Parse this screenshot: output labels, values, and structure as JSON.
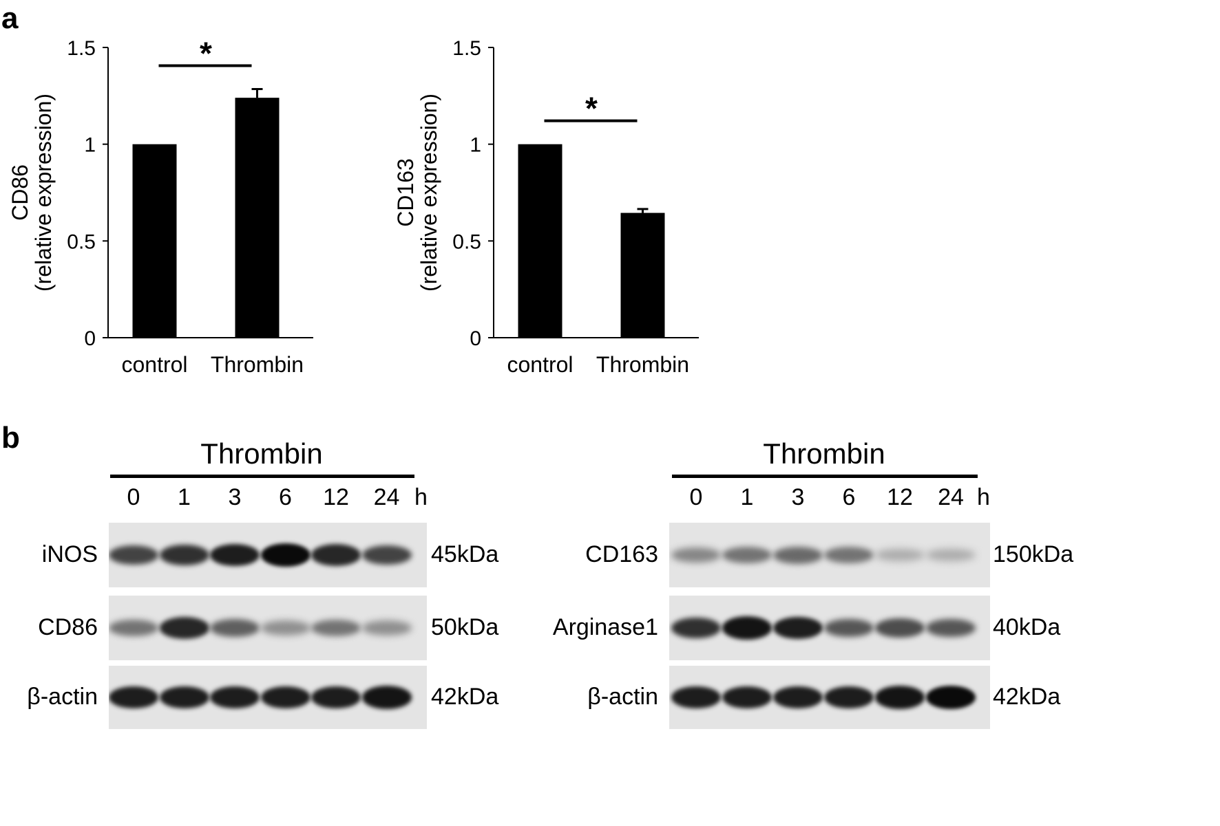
{
  "panels": {
    "a": "a",
    "b": "b"
  },
  "chart_data": [
    {
      "type": "bar",
      "categories": [
        "control",
        "Thrombin"
      ],
      "values": [
        1.0,
        1.24
      ],
      "errors": [
        0,
        0.045
      ],
      "ylabel_line1": "CD86",
      "ylabel_line2": "(relative expression)",
      "ylim": [
        0,
        1.5
      ],
      "yticks": [
        0,
        0.5,
        1,
        1.5
      ],
      "ytick_labels": [
        "0",
        "0.5",
        "1",
        "1.5"
      ],
      "significance": "*",
      "bar_color": "#000000"
    },
    {
      "type": "bar",
      "categories": [
        "control",
        "Thrombin"
      ],
      "values": [
        1.0,
        0.645
      ],
      "errors": [
        0,
        0.02
      ],
      "ylabel_line1": "CD163",
      "ylabel_line2": "(relative expression)",
      "ylim": [
        0,
        1.5
      ],
      "yticks": [
        0,
        0.5,
        1,
        1.5
      ],
      "ytick_labels": [
        "0",
        "0.5",
        "1",
        "1.5"
      ],
      "significance": "*",
      "bar_color": "#000000"
    }
  ],
  "blots": [
    {
      "title": "Thrombin",
      "lanes": [
        "0",
        "1",
        "3",
        "6",
        "12",
        "24"
      ],
      "unit": "h",
      "rows": [
        {
          "label": "iNOS",
          "kda": "45kDa",
          "intensity": [
            0.7,
            0.8,
            0.9,
            1.0,
            0.85,
            0.7
          ]
        },
        {
          "label": "CD86",
          "kda": "50kDa",
          "intensity": [
            0.45,
            0.85,
            0.55,
            0.3,
            0.45,
            0.3
          ]
        },
        {
          "label": "β-actin",
          "kda": "42kDa",
          "intensity": [
            0.9,
            0.9,
            0.9,
            0.9,
            0.9,
            0.95
          ]
        }
      ]
    },
    {
      "title": "Thrombin",
      "lanes": [
        "0",
        "1",
        "3",
        "6",
        "12",
        "24"
      ],
      "unit": "h",
      "rows": [
        {
          "label": "CD163",
          "kda": "150kDa",
          "intensity": [
            0.35,
            0.45,
            0.5,
            0.45,
            0.15,
            0.15
          ]
        },
        {
          "label": "Arginase1",
          "kda": "40kDa",
          "intensity": [
            0.8,
            0.95,
            0.9,
            0.6,
            0.65,
            0.6
          ]
        },
        {
          "label": "β-actin",
          "kda": "42kDa",
          "intensity": [
            0.9,
            0.9,
            0.9,
            0.9,
            0.95,
            1.0
          ]
        }
      ]
    }
  ]
}
